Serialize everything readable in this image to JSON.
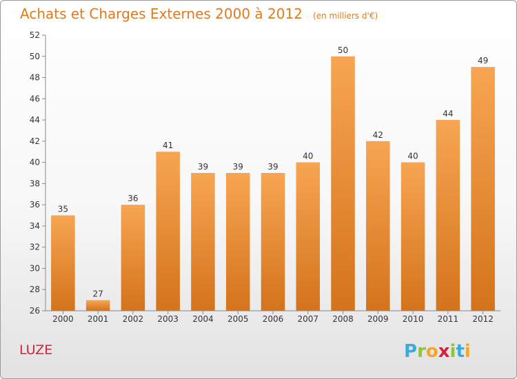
{
  "chart_data": {
    "type": "bar",
    "title": "Achats et Charges Externes 2000 à 2012",
    "subtitle": "(en milliers d'€)",
    "categories": [
      "2000",
      "2001",
      "2002",
      "2003",
      "2004",
      "2005",
      "2006",
      "2007",
      "2008",
      "2009",
      "2010",
      "2011",
      "2012"
    ],
    "values": [
      35,
      27,
      36,
      41,
      39,
      39,
      39,
      40,
      50,
      42,
      40,
      44,
      49
    ],
    "data_labels": [
      "35",
      "27",
      "36",
      "41",
      "39",
      "39",
      "39",
      "40",
      "50",
      "42",
      "40",
      "44",
      "49"
    ],
    "ylim": [
      26,
      52
    ],
    "yticks": [
      "26",
      "28",
      "30",
      "32",
      "34",
      "36",
      "38",
      "40",
      "42",
      "44",
      "46",
      "48",
      "50",
      "52"
    ],
    "xlabel": "",
    "ylabel": "",
    "grid": false,
    "legend": "none",
    "bar_color_top": "#f7a552",
    "bar_color_bottom": "#d4731c"
  },
  "commune": "LUZE",
  "logo": {
    "letters": [
      "P",
      "r",
      "o",
      "x",
      "i",
      "t",
      "i"
    ],
    "colors": [
      "#3fa9dc",
      "#8bc43f",
      "#f5a623",
      "#d4213d",
      "#8bc43f",
      "#3fa9dc",
      "#f5a623"
    ]
  }
}
